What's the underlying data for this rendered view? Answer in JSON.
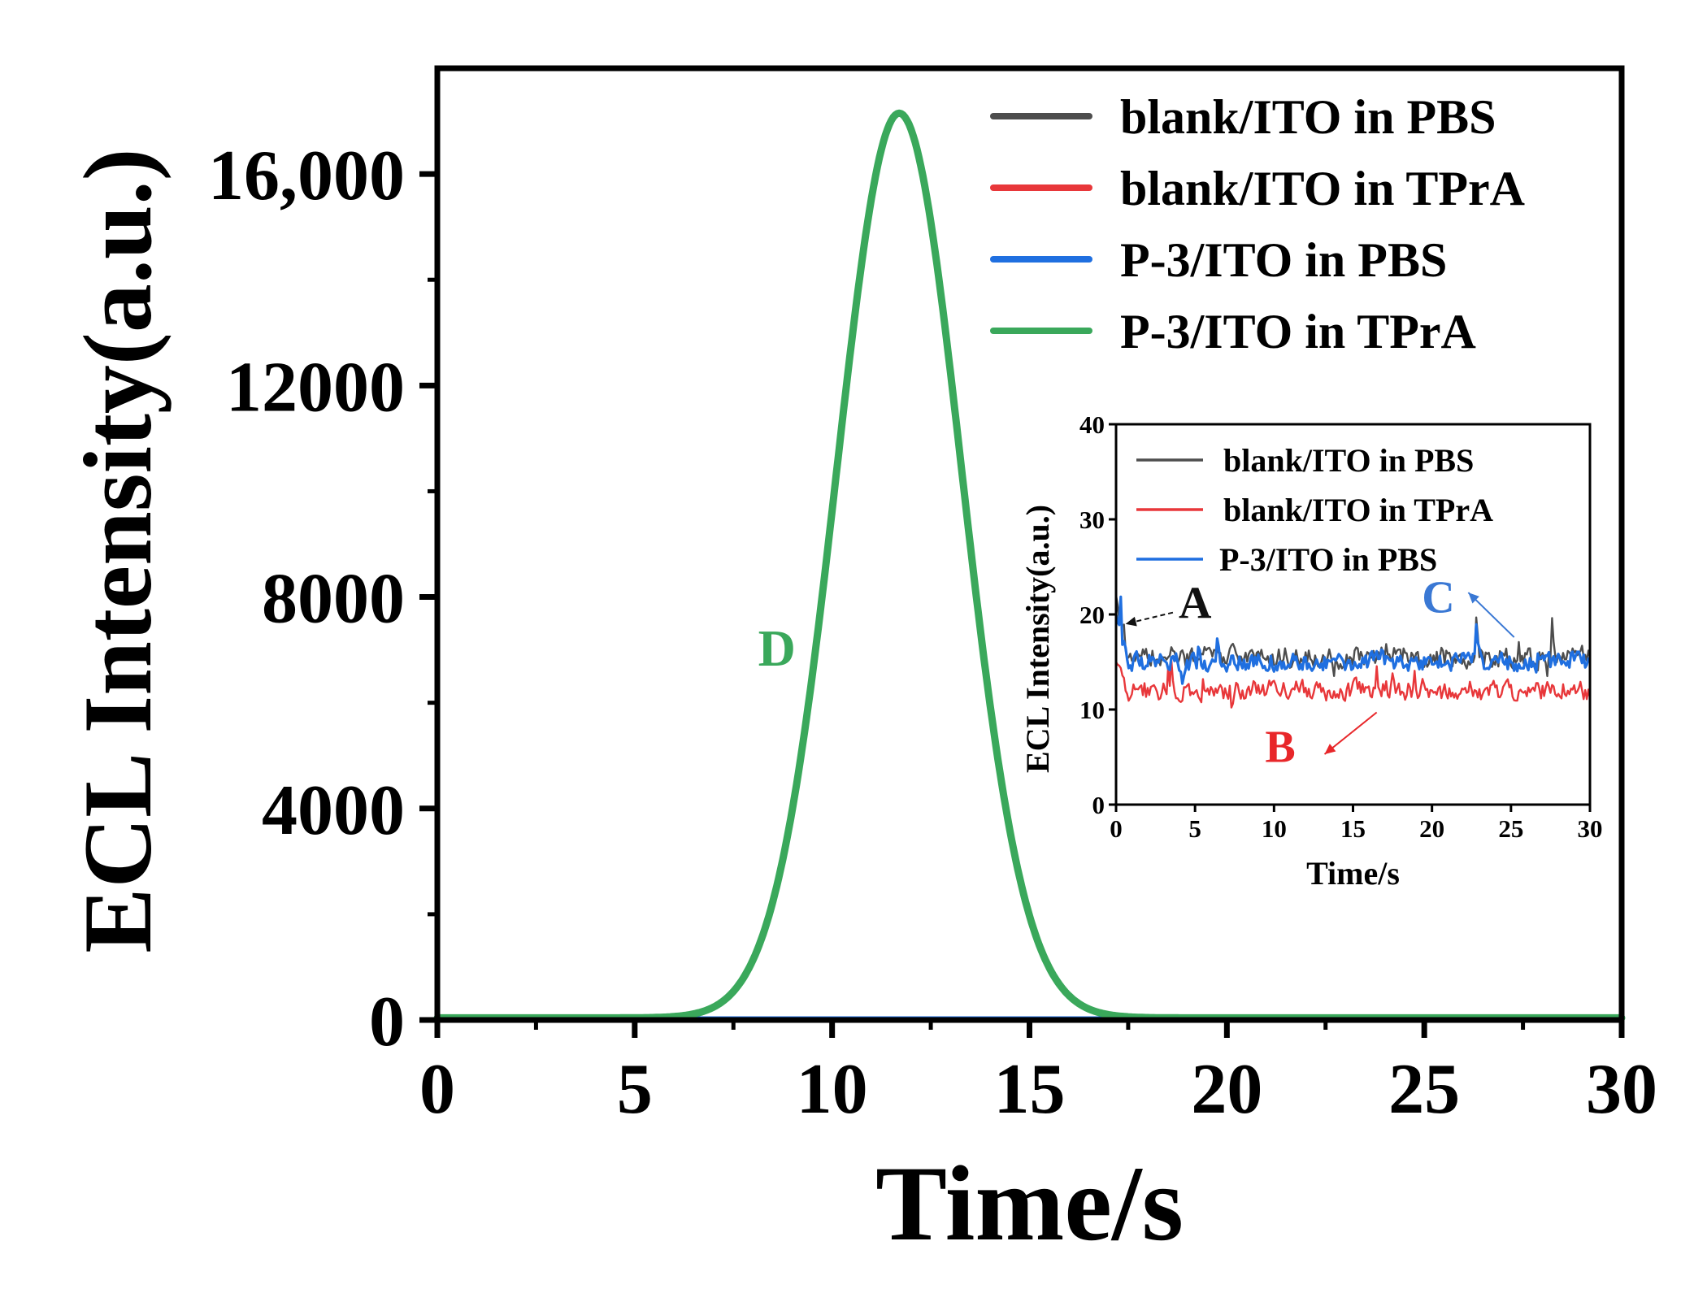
{
  "chart_data": [
    {
      "id": "main",
      "type": "line",
      "title": "",
      "xlabel": "Time/s",
      "ylabel": "ECL Intensity(a.u.)",
      "xlim": [
        0,
        30
      ],
      "ylim": [
        0,
        18000
      ],
      "xticks": [
        0,
        5,
        10,
        15,
        20,
        25,
        30
      ],
      "xtick_labels": [
        "0",
        "5",
        "10",
        "15",
        "20",
        "25",
        "30"
      ],
      "yticks": [
        0,
        4000,
        8000,
        12000,
        16000
      ],
      "ytick_labels": [
        "0",
        "4000",
        "8000",
        "12000",
        "16,000"
      ],
      "legend_position": "top-right",
      "series": [
        {
          "name": "blank/ITO in PBS",
          "color": "#4d4d4d",
          "shape": "baseline",
          "baseline": 15,
          "peak": null
        },
        {
          "name": "blank/ITO in TPrA",
          "color": "#e8373a",
          "shape": "baseline",
          "baseline": 12,
          "peak": null
        },
        {
          "name": "P-3/ITO in PBS",
          "color": "#1f6fe0",
          "shape": "baseline",
          "baseline": 15,
          "peak": null
        },
        {
          "name": "P-3/ITO in TPrA",
          "color": "#3aa85b",
          "shape": "peak",
          "baseline": 40,
          "peak": {
            "x": 11.7,
            "y": 17150
          }
        }
      ],
      "annotations": [
        {
          "text": "D",
          "x": 8.6,
          "y": 6700,
          "color": "#3aa85b"
        }
      ]
    },
    {
      "id": "inset",
      "type": "line",
      "title": "",
      "xlabel": "Time/s",
      "ylabel": "ECL Intensity(a.u.)",
      "xlim": [
        0,
        30
      ],
      "ylim": [
        0,
        40
      ],
      "xticks": [
        0,
        5,
        10,
        15,
        20,
        25,
        30
      ],
      "xtick_labels": [
        "0",
        "5",
        "10",
        "15",
        "20",
        "25",
        "30"
      ],
      "yticks": [
        0,
        10,
        20,
        30,
        40
      ],
      "ytick_labels": [
        "0",
        "10",
        "20",
        "30",
        "40"
      ],
      "legend_position": "top",
      "series": [
        {
          "name": "blank/ITO in PBS",
          "color": "#4d4d4d",
          "mean": 15.5,
          "noise": 1.6,
          "start": 22
        },
        {
          "name": "blank/ITO in TPrA",
          "color": "#e8373a",
          "mean": 12.0,
          "noise": 1.5,
          "start": 15
        },
        {
          "name": "P-3/ITO in PBS",
          "color": "#1f6fe0",
          "mean": 15.0,
          "noise": 1.4,
          "start": 20
        }
      ],
      "annotations": [
        {
          "text": "A",
          "x": 5.0,
          "y": 19.6,
          "color": "#111111",
          "arrow_from": [
            3.6,
            20.2
          ],
          "arrow_to": [
            0.6,
            19.0
          ]
        },
        {
          "text": "B",
          "x": 10.4,
          "y": 4.5,
          "color": "#e8272a",
          "arrow_from": [
            16.5,
            9.7
          ],
          "arrow_to": [
            13.2,
            5.3
          ]
        },
        {
          "text": "C",
          "x": 20.4,
          "y": 20.2,
          "color": "#3a78d4",
          "arrow_from": [
            25.2,
            17.6
          ],
          "arrow_to": [
            22.3,
            22.3
          ]
        }
      ]
    }
  ]
}
